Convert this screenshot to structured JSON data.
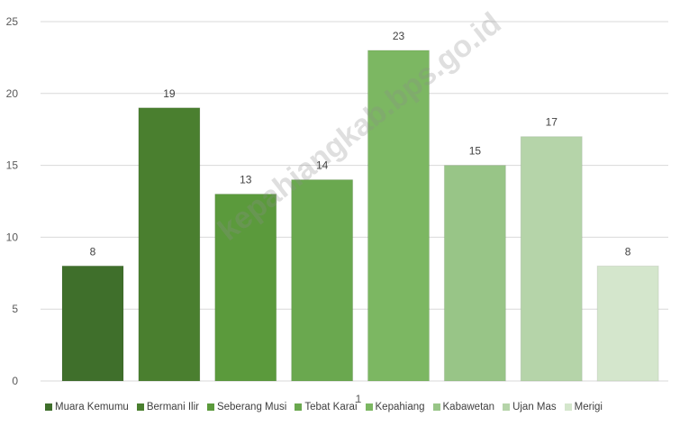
{
  "chart_data": {
    "type": "bar",
    "categories": [
      "1"
    ],
    "series": [
      {
        "name": "Muara Kemumu",
        "values": [
          8
        ],
        "color": "#3f6f2b"
      },
      {
        "name": "Bermani Ilir",
        "values": [
          19
        ],
        "color": "#4a7f2f"
      },
      {
        "name": "Seberang Musi",
        "values": [
          13
        ],
        "color": "#5b9a3c"
      },
      {
        "name": "Tebat Karai",
        "values": [
          14
        ],
        "color": "#6aa84f"
      },
      {
        "name": "Kepahiang",
        "values": [
          23
        ],
        "color": "#7cb762"
      },
      {
        "name": "Kabawetan",
        "values": [
          15
        ],
        "color": "#98c587"
      },
      {
        "name": "Ujan Mas",
        "values": [
          17
        ],
        "color": "#b5d4a9"
      },
      {
        "name": "Merigi",
        "values": [
          8
        ],
        "color": "#d4e6cc"
      }
    ],
    "ylim": [
      0,
      25
    ],
    "yticks": [
      0,
      5,
      10,
      15,
      20,
      25
    ],
    "grid": true,
    "legend_position": "bottom"
  },
  "watermark": "kepahiangkab.bps.go.id"
}
